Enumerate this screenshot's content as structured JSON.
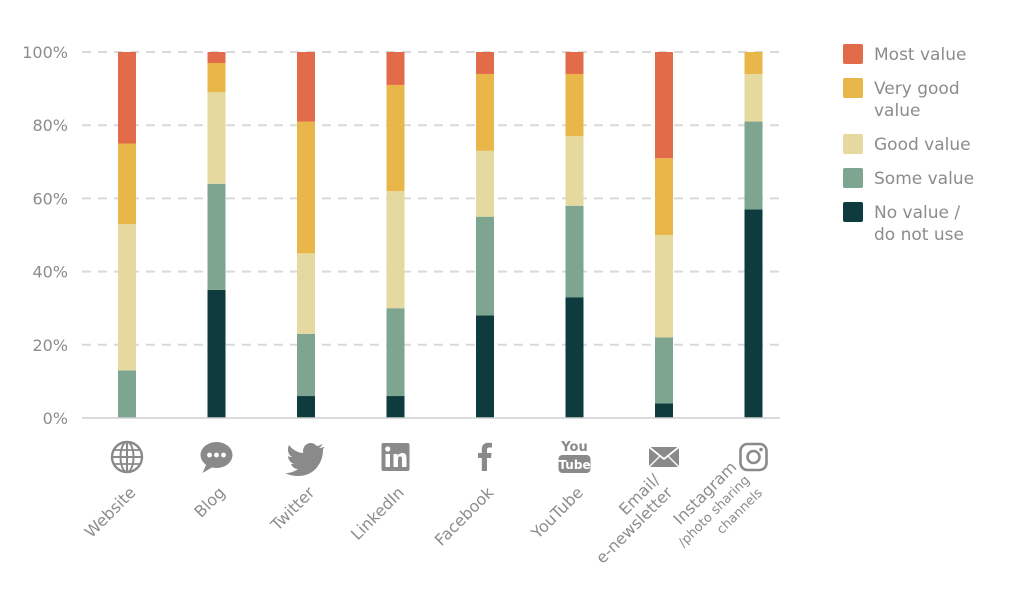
{
  "chart_data": {
    "type": "bar",
    "stacked": true,
    "percent": true,
    "categories": [
      "Website",
      "Blog",
      "Twitter",
      "LinkedIn",
      "Facebook",
      "YouTube",
      "Email/ e-newsletter",
      "Instagram /photo sharing channels"
    ],
    "category_label_lines": [
      [
        "Website"
      ],
      [
        "Blog"
      ],
      [
        "Twitter"
      ],
      [
        "LinkedIn"
      ],
      [
        "Facebook"
      ],
      [
        "YouTube"
      ],
      [
        "Email/",
        "e-newsletter"
      ],
      [
        "Instagram",
        "/photo sharing",
        "channels"
      ]
    ],
    "category_icons": [
      "globe-icon",
      "speech-bubble-icon",
      "twitter-bird-icon",
      "linkedin-icon",
      "facebook-icon",
      "youtube-icon",
      "envelope-icon",
      "instagram-icon"
    ],
    "series": [
      {
        "name": "No value / do not use",
        "label_lines": [
          "No value /",
          "do not use"
        ],
        "color": "#0e3b3e",
        "values": [
          0,
          35,
          6,
          6,
          28,
          33,
          4,
          57
        ]
      },
      {
        "name": "Some value",
        "label_lines": [
          "Some value"
        ],
        "color": "#7da58f",
        "values": [
          13,
          29,
          17,
          24,
          27,
          25,
          18,
          24
        ]
      },
      {
        "name": "Good value",
        "label_lines": [
          "Good value"
        ],
        "color": "#e5d99f",
        "values": [
          40,
          25,
          22,
          32,
          18,
          19,
          28,
          13
        ]
      },
      {
        "name": "Very good value",
        "label_lines": [
          "Very good",
          "value"
        ],
        "color": "#e8b649",
        "values": [
          22,
          8,
          36,
          29,
          21,
          17,
          21,
          6
        ]
      },
      {
        "name": "Most value",
        "label_lines": [
          "Most value"
        ],
        "color": "#e26b4a",
        "values": [
          25,
          3,
          19,
          9,
          6,
          6,
          29,
          0
        ]
      }
    ],
    "legend_order": [
      "Most value",
      "Very good value",
      "Good value",
      "Some value",
      "No value / do not use"
    ],
    "y_ticks": [
      "0%",
      "20%",
      "40%",
      "60%",
      "80%",
      "100%"
    ],
    "ylim": [
      0,
      100
    ],
    "grid": true,
    "legend_position": "right"
  }
}
